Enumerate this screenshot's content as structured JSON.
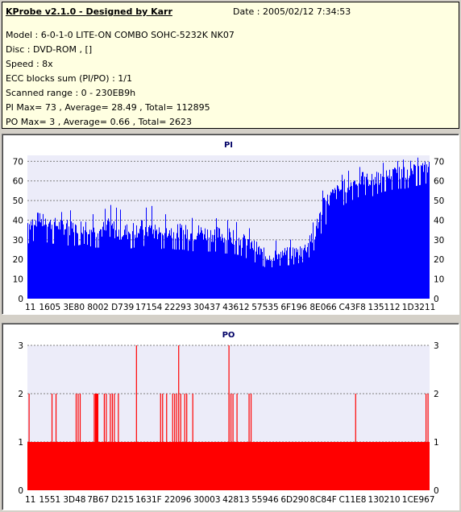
{
  "app": {
    "title": "KProbe v2.1.0 - Designed by Karr",
    "date": "Date : 2005/02/12 7:34:53"
  },
  "info": {
    "lines": [
      "Model : 6-0-1-0 LITE-ON COMBO SOHC-5232K NK07",
      "Disc : DVD-ROM ,  []",
      "Speed : 8x",
      "ECC blocks sum (PI/PO) : 1/1",
      "Scanned range : 0 - 230EB9h",
      "PI Max= 73 , Average= 28.49 , Total= 112895",
      "PO Max= 3 , Average= 0.66 , Total= 2623"
    ]
  },
  "colors": {
    "pi_fill": "#0000ff",
    "po_fill": "#ff0000",
    "plot_bg": "#ececf9",
    "title": "#000066"
  },
  "chart_data": [
    {
      "type": "area",
      "title": "PI",
      "xlabel": "",
      "ylabel": "",
      "ylim": [
        0,
        73
      ],
      "yticks": [
        0,
        10,
        20,
        30,
        40,
        50,
        60,
        70
      ],
      "x_tick_labels": [
        "11",
        "1605",
        "3E80",
        "8002",
        "D739",
        "17154",
        "22293",
        "30437",
        "43612",
        "57535",
        "6F196",
        "8E066",
        "C43F8",
        "135112",
        "1D3211"
      ],
      "grid": true,
      "series": [
        {
          "values": [
            38,
            40,
            39,
            38,
            37,
            36,
            36,
            37,
            35,
            35,
            36,
            35,
            34,
            35,
            36,
            35,
            34,
            35,
            34,
            34,
            33,
            34,
            33,
            33,
            32,
            32,
            30,
            28,
            25,
            22,
            22,
            23,
            23,
            24,
            26,
            33,
            46,
            52,
            55,
            58,
            60,
            61,
            60,
            62,
            63,
            64,
            64,
            65,
            66,
            67
          ],
          "max_values": [
            45,
            44,
            43,
            43,
            44,
            45,
            45,
            44,
            43,
            44,
            48,
            46,
            44,
            44,
            45,
            48,
            43,
            43,
            42,
            42,
            41,
            43,
            41,
            41,
            40,
            40,
            38,
            36,
            34,
            30,
            29,
            31,
            30,
            31,
            33,
            40,
            55,
            60,
            62,
            65,
            66,
            68,
            67,
            70,
            68,
            70,
            71,
            70,
            73,
            73
          ],
          "min_values": [
            28,
            30,
            29,
            28,
            28,
            27,
            27,
            28,
            26,
            26,
            27,
            26,
            25,
            26,
            27,
            26,
            25,
            26,
            25,
            25,
            24,
            25,
            24,
            24,
            23,
            23,
            22,
            20,
            18,
            16,
            16,
            17,
            17,
            18,
            19,
            25,
            35,
            42,
            46,
            49,
            51,
            53,
            52,
            54,
            55,
            56,
            56,
            57,
            58,
            59
          ]
        }
      ]
    },
    {
      "type": "area",
      "title": "PO",
      "xlabel": "",
      "ylabel": "",
      "ylim": [
        0,
        3
      ],
      "yticks": [
        0,
        1,
        2,
        3
      ],
      "x_tick_labels": [
        "11",
        "1551",
        "3D48",
        "7B67",
        "D215",
        "1631F",
        "22096",
        "30003",
        "42813",
        "55946",
        "6D290",
        "8C84F",
        "C11E8",
        "130210",
        "1CE967"
      ],
      "grid": true,
      "baseline": 1,
      "spikes_2": [
        0.003,
        0.06,
        0.07,
        0.12,
        0.125,
        0.13,
        0.165,
        0.168,
        0.17,
        0.172,
        0.174,
        0.19,
        0.195,
        0.205,
        0.21,
        0.215,
        0.225,
        0.33,
        0.335,
        0.345,
        0.36,
        0.365,
        0.37,
        0.38,
        0.39,
        0.395,
        0.41,
        0.5,
        0.505,
        0.51,
        0.52,
        0.55,
        0.555,
        0.815,
        0.99,
        0.995
      ],
      "spikes_3": [
        0.27,
        0.375,
        0.5
      ]
    }
  ]
}
